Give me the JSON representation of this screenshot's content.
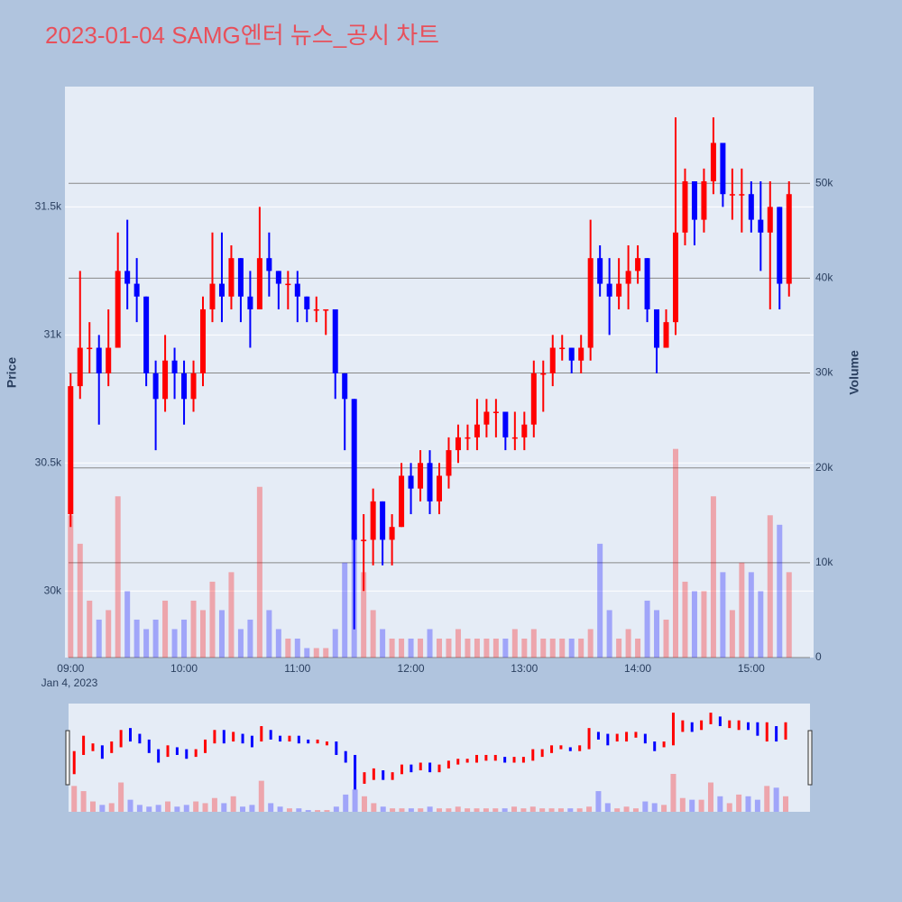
{
  "chart_data": {
    "type": "candlestick",
    "title": "2023-01-04 SAMG엔터 뉴스_공시 차트",
    "y_label": "Price",
    "y2_label": "Volume",
    "x_sublabel": "Jan 4, 2023",
    "increasing_color": "#ff0000",
    "decreasing_color": "#0000ff",
    "x": [
      "09:00",
      "09:05",
      "09:10",
      "09:15",
      "09:20",
      "09:25",
      "09:30",
      "09:35",
      "09:40",
      "09:45",
      "09:50",
      "09:55",
      "10:00",
      "10:05",
      "10:10",
      "10:15",
      "10:20",
      "10:25",
      "10:30",
      "10:35",
      "10:40",
      "10:45",
      "10:50",
      "10:55",
      "11:00",
      "11:05",
      "11:10",
      "11:15",
      "11:20",
      "11:25",
      "11:30",
      "11:35",
      "11:40",
      "11:45",
      "11:50",
      "11:55",
      "12:00",
      "12:05",
      "12:10",
      "12:15",
      "12:20",
      "12:25",
      "12:30",
      "12:35",
      "12:40",
      "12:45",
      "12:50",
      "12:55",
      "13:00",
      "13:05",
      "13:10",
      "13:15",
      "13:20",
      "13:25",
      "13:30",
      "13:35",
      "13:40",
      "13:45",
      "13:50",
      "13:55",
      "14:00",
      "14:05",
      "14:10",
      "14:15",
      "14:20",
      "14:25",
      "14:30",
      "14:35",
      "14:40",
      "14:45",
      "14:50",
      "14:55",
      "15:00",
      "15:05",
      "15:10",
      "15:15",
      "15:20"
    ],
    "open": [
      30300,
      30800,
      30950,
      30950,
      30850,
      30950,
      31250,
      31200,
      31150,
      30850,
      30750,
      30900,
      30850,
      30750,
      30850,
      31100,
      31200,
      31150,
      31300,
      31150,
      31100,
      31300,
      31250,
      31200,
      31200,
      31150,
      31100,
      31100,
      31100,
      30850,
      30750,
      30200,
      30200,
      30350,
      30200,
      30250,
      30450,
      30400,
      30500,
      30350,
      30450,
      30550,
      30600,
      30600,
      30650,
      30700,
      30700,
      30600,
      30600,
      30650,
      30850,
      30850,
      30950,
      30950,
      30900,
      30950,
      31300,
      31200,
      31150,
      31200,
      31250,
      31300,
      31100,
      30950,
      31050,
      31400,
      31600,
      31450,
      31600,
      31750,
      31550,
      31550,
      31550,
      31450,
      31400,
      31500,
      31200
    ],
    "high": [
      30850,
      31250,
      31050,
      31000,
      31100,
      31400,
      31450,
      31300,
      31150,
      30900,
      31000,
      30950,
      30900,
      30900,
      31150,
      31400,
      31400,
      31350,
      31300,
      31250,
      31500,
      31400,
      31250,
      31250,
      31250,
      31150,
      31150,
      31100,
      31100,
      30850,
      30750,
      30300,
      30400,
      30350,
      30300,
      30500,
      30500,
      30550,
      30550,
      30500,
      30600,
      30650,
      30650,
      30750,
      30750,
      30750,
      30700,
      30700,
      30700,
      30900,
      30900,
      31000,
      31000,
      30950,
      31000,
      31450,
      31350,
      31300,
      31300,
      31350,
      31350,
      31300,
      31100,
      31100,
      31850,
      31650,
      31600,
      31650,
      31850,
      31750,
      31650,
      31650,
      31600,
      31600,
      31600,
      31500,
      31600
    ],
    "low": [
      30250,
      30750,
      30850,
      30650,
      30800,
      30950,
      31100,
      31050,
      30800,
      30550,
      30700,
      30750,
      30650,
      30700,
      30800,
      31050,
      31050,
      31100,
      31050,
      30950,
      31100,
      31150,
      31100,
      31100,
      31050,
      31050,
      31050,
      31000,
      30750,
      30550,
      29850,
      30000,
      30100,
      30100,
      30100,
      30250,
      30300,
      30350,
      30300,
      30300,
      30400,
      30500,
      30550,
      30550,
      30600,
      30600,
      30550,
      30550,
      30550,
      30600,
      30700,
      30800,
      30900,
      30850,
      30850,
      30900,
      31150,
      31000,
      31100,
      31100,
      31200,
      31050,
      30850,
      30950,
      31000,
      31350,
      31350,
      31400,
      31550,
      31500,
      31450,
      31400,
      31400,
      31250,
      31100,
      31100,
      31150
    ],
    "close": [
      30800,
      30950,
      30950,
      30850,
      30950,
      31250,
      31200,
      31150,
      30850,
      30750,
      30900,
      30850,
      30750,
      30850,
      31100,
      31200,
      31150,
      31300,
      31150,
      31100,
      31300,
      31250,
      31200,
      31200,
      31150,
      31100,
      31100,
      31100,
      30850,
      30750,
      30200,
      30200,
      30350,
      30200,
      30250,
      30450,
      30400,
      30500,
      30350,
      30450,
      30550,
      30600,
      30600,
      30650,
      30700,
      30700,
      30600,
      30600,
      30650,
      30850,
      30850,
      30950,
      30950,
      30900,
      30950,
      31300,
      31200,
      31150,
      31200,
      31250,
      31300,
      31100,
      30950,
      31050,
      31400,
      31600,
      31450,
      31600,
      31750,
      31550,
      31550,
      31550,
      31450,
      31400,
      31500,
      31200,
      31550
    ],
    "volume": [
      15000,
      12000,
      6000,
      4000,
      5000,
      17000,
      7000,
      4000,
      3000,
      4000,
      6000,
      3000,
      4000,
      6000,
      5000,
      8000,
      5000,
      9000,
      3000,
      4000,
      18000,
      5000,
      3000,
      2000,
      2000,
      1000,
      1000,
      1000,
      3000,
      10000,
      13000,
      9000,
      5000,
      3000,
      2000,
      2000,
      2000,
      2000,
      3000,
      2000,
      2000,
      3000,
      2000,
      2000,
      2000,
      2000,
      2000,
      3000,
      2000,
      3000,
      2000,
      2000,
      2000,
      2000,
      2000,
      3000,
      12000,
      5000,
      2000,
      3000,
      2000,
      6000,
      5000,
      4000,
      22000,
      8000,
      7000,
      7000,
      17000,
      9000,
      5000,
      10000,
      9000,
      7000,
      15000,
      14000,
      9000
    ],
    "xlim": [
      "08:57",
      "15:33"
    ],
    "xticks": [
      "09:00",
      "10:00",
      "11:00",
      "12:00",
      "13:00",
      "14:00",
      "15:00"
    ],
    "ylim": [
      29740,
      31970
    ],
    "yticks": [
      {
        "value": 30000,
        "label": "30k"
      },
      {
        "value": 30500,
        "label": "30.5k"
      },
      {
        "value": 31000,
        "label": "31k"
      },
      {
        "value": 31500,
        "label": "31.5k"
      }
    ],
    "y2lim": [
      0,
      60200
    ],
    "y2ticks": [
      0,
      {
        "value": 10000,
        "label": "10k"
      },
      {
        "value": 20000,
        "label": "20k"
      },
      {
        "value": 30000,
        "label": "30k"
      },
      {
        "value": 40000,
        "label": "40k"
      },
      {
        "value": 50000,
        "label": "50k"
      }
    ],
    "grid": true,
    "rangeslider": true
  }
}
